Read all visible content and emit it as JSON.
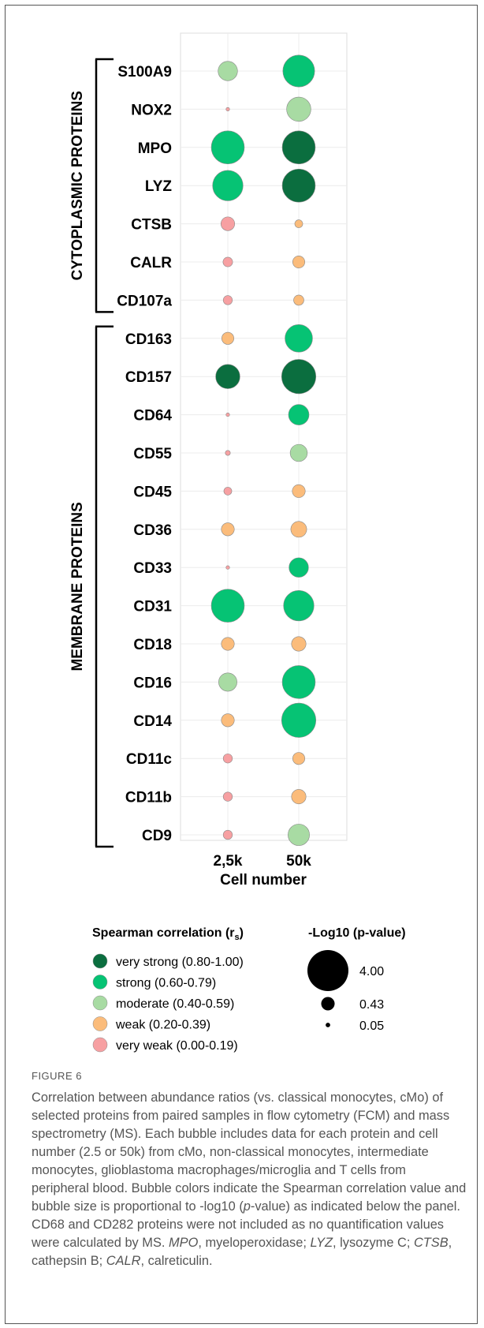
{
  "figure": {
    "label": "FIGURE 6",
    "caption_parts": [
      {
        "text": "Correlation between abundance ratios (vs. classical monocytes, cMo) of selected proteins from paired samples in flow cytometry (FCM) and mass spectrometry (MS). Each bubble includes data for each protein and cell number (2.5 or 50k) from cMo, non-classical monocytes, intermediate monocytes, glioblastoma macrophages/microglia and T cells from peripheral blood. Bubble colors indicate the Spearman correlation value and bubble size is proportional to -log10 (",
        "italic": false
      },
      {
        "text": "p",
        "italic": true
      },
      {
        "text": "-value) as indicated below the panel. CD68 and CD282 proteins were not included as no quantification values were calculated by MS. ",
        "italic": false
      },
      {
        "text": "MPO",
        "italic": true
      },
      {
        "text": ", myeloperoxidase; ",
        "italic": false
      },
      {
        "text": "LYZ",
        "italic": true
      },
      {
        "text": ", lysozyme C; ",
        "italic": false
      },
      {
        "text": "CTSB",
        "italic": true
      },
      {
        "text": ", cathepsin B; ",
        "italic": false
      },
      {
        "text": "CALR",
        "italic": true
      },
      {
        "text": ", calreticulin.",
        "italic": false
      }
    ]
  },
  "chart_data": {
    "type": "bubble",
    "x_categories": [
      "2,5k",
      "50k"
    ],
    "xlabel": "Cell number",
    "groups": [
      {
        "name": "CYTOPLASMIC PROTEINS",
        "proteins": [
          "S100A9",
          "NOX2",
          "MPO",
          "LYZ",
          "CTSB",
          "CALR",
          "CD107a"
        ]
      },
      {
        "name": "MEMBRANE PROTEINS",
        "proteins": [
          "CD163",
          "CD157",
          "CD64",
          "CD55",
          "CD45",
          "CD36",
          "CD33",
          "CD31",
          "CD18",
          "CD16",
          "CD14",
          "CD11c",
          "CD11b",
          "CD9"
        ]
      }
    ],
    "proteins": [
      "S100A9",
      "NOX2",
      "MPO",
      "LYZ",
      "CTSB",
      "CALR",
      "CD107a",
      "CD163",
      "CD157",
      "CD64",
      "CD55",
      "CD45",
      "CD36",
      "CD33",
      "CD31",
      "CD18",
      "CD16",
      "CD14",
      "CD11c",
      "CD11b",
      "CD9"
    ],
    "points": [
      {
        "protein": "S100A9",
        "cells": "2,5k",
        "correlation": "moderate",
        "neg_log10_p": 0.9
      },
      {
        "protein": "S100A9",
        "cells": "50k",
        "correlation": "strong",
        "neg_log10_p": 2.4
      },
      {
        "protein": "NOX2",
        "cells": "2,5k",
        "correlation": "very weak",
        "neg_log10_p": 0.03
      },
      {
        "protein": "NOX2",
        "cells": "50k",
        "correlation": "moderate",
        "neg_log10_p": 1.4
      },
      {
        "protein": "MPO",
        "cells": "2,5k",
        "correlation": "strong",
        "neg_log10_p": 2.6
      },
      {
        "protein": "MPO",
        "cells": "50k",
        "correlation": "very strong",
        "neg_log10_p": 2.6
      },
      {
        "protein": "LYZ",
        "cells": "2,5k",
        "correlation": "strong",
        "neg_log10_p": 2.2
      },
      {
        "protein": "LYZ",
        "cells": "50k",
        "correlation": "very strong",
        "neg_log10_p": 2.6
      },
      {
        "protein": "CTSB",
        "cells": "2,5k",
        "correlation": "very weak",
        "neg_log10_p": 0.45
      },
      {
        "protein": "CTSB",
        "cells": "50k",
        "correlation": "weak",
        "neg_log10_p": 0.15
      },
      {
        "protein": "CALR",
        "cells": "2,5k",
        "correlation": "very weak",
        "neg_log10_p": 0.22
      },
      {
        "protein": "CALR",
        "cells": "50k",
        "correlation": "weak",
        "neg_log10_p": 0.35
      },
      {
        "protein": "CD107a",
        "cells": "2,5k",
        "correlation": "very weak",
        "neg_log10_p": 0.2
      },
      {
        "protein": "CD107a",
        "cells": "50k",
        "correlation": "weak",
        "neg_log10_p": 0.25
      },
      {
        "protein": "CD163",
        "cells": "2,5k",
        "correlation": "weak",
        "neg_log10_p": 0.35
      },
      {
        "protein": "CD163",
        "cells": "50k",
        "correlation": "strong",
        "neg_log10_p": 1.8
      },
      {
        "protein": "CD157",
        "cells": "2,5k",
        "correlation": "very strong",
        "neg_log10_p": 1.4
      },
      {
        "protein": "CD157",
        "cells": "50k",
        "correlation": "very strong",
        "neg_log10_p": 2.8
      },
      {
        "protein": "CD64",
        "cells": "2,5k",
        "correlation": "very weak",
        "neg_log10_p": 0.03
      },
      {
        "protein": "CD64",
        "cells": "50k",
        "correlation": "strong",
        "neg_log10_p": 1.0
      },
      {
        "protein": "CD55",
        "cells": "2,5k",
        "correlation": "very weak",
        "neg_log10_p": 0.06
      },
      {
        "protein": "CD55",
        "cells": "50k",
        "correlation": "moderate",
        "neg_log10_p": 0.7
      },
      {
        "protein": "CD45",
        "cells": "2,5k",
        "correlation": "very weak",
        "neg_log10_p": 0.15
      },
      {
        "protein": "CD45",
        "cells": "50k",
        "correlation": "weak",
        "neg_log10_p": 0.4
      },
      {
        "protein": "CD36",
        "cells": "2,5k",
        "correlation": "weak",
        "neg_log10_p": 0.4
      },
      {
        "protein": "CD36",
        "cells": "50k",
        "correlation": "weak",
        "neg_log10_p": 0.6
      },
      {
        "protein": "CD33",
        "cells": "2,5k",
        "correlation": "very weak",
        "neg_log10_p": 0.03
      },
      {
        "protein": "CD33",
        "cells": "50k",
        "correlation": "strong",
        "neg_log10_p": 0.9
      },
      {
        "protein": "CD31",
        "cells": "2,5k",
        "correlation": "strong",
        "neg_log10_p": 2.6
      },
      {
        "protein": "CD31",
        "cells": "50k",
        "correlation": "strong",
        "neg_log10_p": 2.2
      },
      {
        "protein": "CD18",
        "cells": "2,5k",
        "correlation": "weak",
        "neg_log10_p": 0.4
      },
      {
        "protein": "CD18",
        "cells": "50k",
        "correlation": "weak",
        "neg_log10_p": 0.5
      },
      {
        "protein": "CD16",
        "cells": "2,5k",
        "correlation": "moderate",
        "neg_log10_p": 0.8
      },
      {
        "protein": "CD16",
        "cells": "50k",
        "correlation": "strong",
        "neg_log10_p": 2.6
      },
      {
        "protein": "CD14",
        "cells": "2,5k",
        "correlation": "weak",
        "neg_log10_p": 0.4
      },
      {
        "protein": "CD14",
        "cells": "50k",
        "correlation": "strong",
        "neg_log10_p": 2.8
      },
      {
        "protein": "CD11c",
        "cells": "2,5k",
        "correlation": "very weak",
        "neg_log10_p": 0.2
      },
      {
        "protein": "CD11c",
        "cells": "50k",
        "correlation": "weak",
        "neg_log10_p": 0.35
      },
      {
        "protein": "CD11b",
        "cells": "2,5k",
        "correlation": "very weak",
        "neg_log10_p": 0.2
      },
      {
        "protein": "CD11b",
        "cells": "50k",
        "correlation": "weak",
        "neg_log10_p": 0.5
      },
      {
        "protein": "CD9",
        "cells": "2,5k",
        "correlation": "very weak",
        "neg_log10_p": 0.2
      },
      {
        "protein": "CD9",
        "cells": "50k",
        "correlation": "moderate",
        "neg_log10_p": 1.1
      }
    ],
    "color_legend": {
      "title": "Spearman correlation (r",
      "title_subscript": "s",
      "title_close": ")",
      "items": [
        {
          "key": "very strong",
          "label": "very strong (0.80-1.00)",
          "color": "#0b6e3f"
        },
        {
          "key": "strong",
          "label": "strong (0.60-0.79)",
          "color": "#06c374"
        },
        {
          "key": "moderate",
          "label": "moderate (0.40-0.59)",
          "color": "#a8dba3"
        },
        {
          "key": "weak",
          "label": "weak  (0.20-0.39)",
          "color": "#fbbc7b"
        },
        {
          "key": "very weak",
          "label": "very weak  (0.00-0.19)",
          "color": "#f7a0a2"
        }
      ]
    },
    "size_legend": {
      "title": "-Log10 (p-value)",
      "items": [
        {
          "label": "4.00",
          "value": 4.0
        },
        {
          "label": "0.43",
          "value": 0.43
        },
        {
          "label": "0.05",
          "value": 0.05
        }
      ]
    },
    "grid": true,
    "legend_position": "bottom"
  }
}
